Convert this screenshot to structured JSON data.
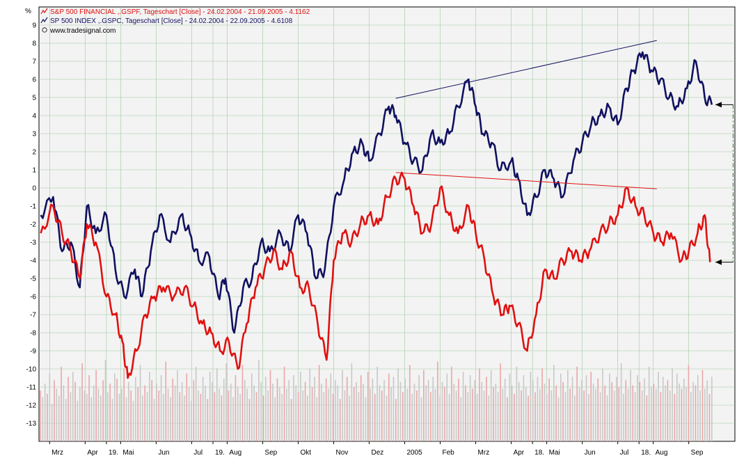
{
  "chart_data": {
    "type": "line",
    "y_unit": "%",
    "legend": [
      {
        "text": "S&P 500 FINANCIAL ,.GSPF, Tageschart [Close] - 24.02.2004 - 21.09.2005 - 4.1162",
        "color": "#e01010",
        "icon": "line-chart-icon"
      },
      {
        "text": "SP 500 INDEX ,.GSPC, Tageschart [Close] - 24.02.2004 - 22.09.2005 - 4.6108",
        "color": "#101060",
        "icon": "line-chart-icon"
      },
      {
        "text": "www.tradesignal.com",
        "color": "#000000",
        "icon": "copyright-icon"
      }
    ],
    "ylim": [
      -14,
      10
    ],
    "yticks": [
      9,
      8,
      7,
      6,
      5,
      4,
      3,
      2,
      1,
      0,
      -1,
      -2,
      -3,
      -4,
      -5,
      -6,
      -7,
      -8,
      -9,
      -10,
      -11,
      -12,
      -13
    ],
    "xticks": [
      {
        "label": "Mrz",
        "t": 0.0
      },
      {
        "label": "Apr",
        "t": 1.0
      },
      {
        "label": "19.",
        "t": 1.6
      },
      {
        "label": "Mai",
        "t": 2.0
      },
      {
        "label": "Jun",
        "t": 3.0
      },
      {
        "label": "Jul",
        "t": 4.0
      },
      {
        "label": "19.",
        "t": 4.6
      },
      {
        "label": "Aug",
        "t": 5.0
      },
      {
        "label": "Sep",
        "t": 6.0
      },
      {
        "label": "Okt",
        "t": 7.0
      },
      {
        "label": "Nov",
        "t": 8.0
      },
      {
        "label": "Dez",
        "t": 9.0
      },
      {
        "label": "2005",
        "t": 10.0
      },
      {
        "label": "Feb",
        "t": 11.0
      },
      {
        "label": "Mrz",
        "t": 12.0
      },
      {
        "label": "Apr",
        "t": 13.0
      },
      {
        "label": "18.",
        "t": 13.6
      },
      {
        "label": "Mai",
        "t": 14.0
      },
      {
        "label": "Jun",
        "t": 15.0
      },
      {
        "label": "Jul",
        "t": 16.0
      },
      {
        "label": "18.",
        "t": 16.6
      },
      {
        "label": "Aug",
        "t": 17.0
      },
      {
        "label": "Sep",
        "t": 18.0
      }
    ],
    "x_range": [
      -0.3,
      19.3
    ],
    "series": [
      {
        "color": "#101060",
        "points": [
          [
            -0.25,
            -1.5
          ],
          [
            0.1,
            -0.5
          ],
          [
            0.35,
            -3.5
          ],
          [
            0.6,
            -3.0
          ],
          [
            0.85,
            -5.5
          ],
          [
            1.05,
            -1.0
          ],
          [
            1.3,
            -2.5
          ],
          [
            1.6,
            -1.5
          ],
          [
            1.85,
            -4.5
          ],
          [
            2.1,
            -6.0
          ],
          [
            2.4,
            -4.5
          ],
          [
            2.6,
            -6.0
          ],
          [
            2.85,
            -3.5
          ],
          [
            3.1,
            -1.5
          ],
          [
            3.4,
            -3.0
          ],
          [
            3.7,
            -1.5
          ],
          [
            3.95,
            -2.5
          ],
          [
            4.2,
            -4.0
          ],
          [
            4.5,
            -3.8
          ],
          [
            4.75,
            -6.0
          ],
          [
            4.95,
            -5.0
          ],
          [
            5.2,
            -8.0
          ],
          [
            5.45,
            -5.5
          ],
          [
            5.7,
            -5.0
          ],
          [
            5.95,
            -3.0
          ],
          [
            6.2,
            -3.5
          ],
          [
            6.5,
            -2.5
          ],
          [
            6.75,
            -3.5
          ],
          [
            7.0,
            -1.5
          ],
          [
            7.25,
            -2.5
          ],
          [
            7.5,
            -5.0
          ],
          [
            7.75,
            -4.5
          ],
          [
            8.0,
            -1.0
          ],
          [
            8.3,
            0.5
          ],
          [
            8.55,
            2.0
          ],
          [
            8.8,
            2.5
          ],
          [
            9.0,
            1.5
          ],
          [
            9.3,
            3.0
          ],
          [
            9.55,
            4.5
          ],
          [
            9.75,
            4.0
          ],
          [
            10.0,
            2.5
          ],
          [
            10.25,
            1.5
          ],
          [
            10.5,
            1.0
          ],
          [
            10.75,
            3.0
          ],
          [
            11.0,
            2.5
          ],
          [
            11.25,
            3.0
          ],
          [
            11.5,
            4.5
          ],
          [
            11.8,
            6.0
          ],
          [
            12.0,
            4.5
          ],
          [
            12.2,
            3.0
          ],
          [
            12.45,
            2.5
          ],
          [
            12.7,
            1.0
          ],
          [
            13.0,
            1.5
          ],
          [
            13.2,
            0.5
          ],
          [
            13.45,
            -1.5
          ],
          [
            13.7,
            -0.5
          ],
          [
            13.95,
            1.0
          ],
          [
            14.2,
            0.5
          ],
          [
            14.45,
            -0.5
          ],
          [
            14.75,
            1.5
          ],
          [
            15.0,
            2.5
          ],
          [
            15.25,
            3.5
          ],
          [
            15.5,
            4.0
          ],
          [
            15.75,
            4.5
          ],
          [
            16.0,
            3.5
          ],
          [
            16.25,
            5.5
          ],
          [
            16.45,
            6.5
          ],
          [
            16.7,
            7.5
          ],
          [
            16.95,
            6.5
          ],
          [
            17.2,
            6.0
          ],
          [
            17.45,
            5.0
          ],
          [
            17.7,
            4.5
          ],
          [
            17.95,
            5.5
          ],
          [
            18.2,
            7.0
          ],
          [
            18.45,
            5.0
          ],
          [
            18.65,
            4.6
          ]
        ]
      },
      {
        "color": "#e01010",
        "points": [
          [
            -0.25,
            -2.5
          ],
          [
            0.1,
            -1.0
          ],
          [
            0.35,
            -2.5
          ],
          [
            0.6,
            -3.5
          ],
          [
            0.85,
            -5.0
          ],
          [
            1.05,
            -2.0
          ],
          [
            1.3,
            -3.0
          ],
          [
            1.6,
            -6.0
          ],
          [
            1.85,
            -7.0
          ],
          [
            2.05,
            -8.5
          ],
          [
            2.2,
            -10.5
          ],
          [
            2.45,
            -9.0
          ],
          [
            2.7,
            -7.0
          ],
          [
            2.95,
            -6.0
          ],
          [
            3.2,
            -5.5
          ],
          [
            3.5,
            -6.0
          ],
          [
            3.8,
            -5.5
          ],
          [
            4.05,
            -6.5
          ],
          [
            4.3,
            -7.5
          ],
          [
            4.55,
            -8.0
          ],
          [
            4.8,
            -9.0
          ],
          [
            5.05,
            -8.5
          ],
          [
            5.3,
            -10.0
          ],
          [
            5.55,
            -7.5
          ],
          [
            5.8,
            -5.5
          ],
          [
            6.05,
            -4.5
          ],
          [
            6.3,
            -3.5
          ],
          [
            6.55,
            -4.5
          ],
          [
            6.8,
            -3.5
          ],
          [
            7.05,
            -5.5
          ],
          [
            7.3,
            -5.5
          ],
          [
            7.55,
            -7.5
          ],
          [
            7.8,
            -9.5
          ],
          [
            8.0,
            -4.0
          ],
          [
            8.25,
            -2.5
          ],
          [
            8.5,
            -3.0
          ],
          [
            8.75,
            -2.0
          ],
          [
            9.0,
            -1.5
          ],
          [
            9.25,
            -2.0
          ],
          [
            9.5,
            -0.5
          ],
          [
            9.75,
            0.5
          ],
          [
            10.0,
            0.5
          ],
          [
            10.25,
            -1.0
          ],
          [
            10.5,
            -2.5
          ],
          [
            10.75,
            -2.0
          ],
          [
            11.0,
            0.0
          ],
          [
            11.25,
            -1.5
          ],
          [
            11.5,
            -2.5
          ],
          [
            11.8,
            -1.0
          ],
          [
            12.0,
            -2.5
          ],
          [
            12.25,
            -4.0
          ],
          [
            12.5,
            -6.0
          ],
          [
            12.75,
            -7.0
          ],
          [
            12.95,
            -6.5
          ],
          [
            13.2,
            -7.5
          ],
          [
            13.45,
            -9.0
          ],
          [
            13.7,
            -7.0
          ],
          [
            13.95,
            -4.5
          ],
          [
            14.2,
            -5.0
          ],
          [
            14.45,
            -4.0
          ],
          [
            14.7,
            -3.5
          ],
          [
            14.95,
            -4.0
          ],
          [
            15.2,
            -3.5
          ],
          [
            15.5,
            -2.5
          ],
          [
            15.75,
            -2.0
          ],
          [
            16.0,
            -1.5
          ],
          [
            16.25,
            0.0
          ],
          [
            16.5,
            -1.0
          ],
          [
            16.75,
            -1.5
          ],
          [
            17.0,
            -2.5
          ],
          [
            17.25,
            -3.0
          ],
          [
            17.5,
            -2.5
          ],
          [
            17.8,
            -4.0
          ],
          [
            18.0,
            -3.5
          ],
          [
            18.25,
            -2.5
          ],
          [
            18.45,
            -1.5
          ],
          [
            18.6,
            -4.1
          ]
        ]
      }
    ],
    "trendlines": [
      {
        "color": "#101060",
        "from": [
          9.75,
          4.95
        ],
        "to": [
          17.1,
          8.15
        ]
      },
      {
        "color": "#e01010",
        "from": [
          9.75,
          0.85
        ],
        "to": [
          17.1,
          -0.05
        ]
      }
    ],
    "gap_marker": {
      "color": "#207a20",
      "x": 19.25,
      "from": 4.6,
      "to": -4.1
    },
    "volume": [
      30,
      26,
      34,
      28,
      40,
      22,
      36,
      31,
      27,
      44,
      33,
      25,
      38,
      29,
      41,
      35,
      24,
      32,
      46,
      30,
      28,
      39,
      26,
      33,
      42,
      31,
      27,
      36,
      48,
      29,
      34,
      25,
      40,
      37,
      28,
      31,
      43,
      26,
      35,
      30,
      24,
      38,
      32,
      45,
      27,
      33,
      29,
      41,
      36,
      25,
      34,
      30,
      39,
      28,
      47,
      31,
      26,
      37,
      33,
      42,
      29,
      35,
      27,
      40,
      32,
      24,
      36,
      44,
      30,
      28,
      38,
      33,
      25,
      41,
      35,
      29,
      43,
      31,
      27,
      37,
      46,
      30,
      34,
      26,
      39,
      32,
      28,
      45,
      36,
      31,
      25,
      40,
      33,
      29,
      48,
      35,
      27,
      38,
      30,
      42,
      34,
      26,
      37,
      32,
      28,
      44,
      31,
      36,
      25,
      39,
      33,
      29,
      41,
      30,
      35,
      27,
      43,
      32,
      38,
      26,
      45,
      34,
      29,
      37,
      31,
      40,
      28,
      36,
      33,
      25,
      42,
      30,
      38,
      27,
      46,
      32,
      35,
      29,
      39,
      34,
      26,
      41,
      31,
      37,
      28,
      44,
      33,
      30,
      36,
      27,
      40,
      32,
      38,
      25,
      43,
      35,
      29,
      37,
      31,
      45,
      28,
      34,
      30,
      39,
      26,
      42,
      33,
      36,
      29,
      38,
      31,
      47,
      27,
      35,
      32,
      40,
      28,
      44,
      34,
      30,
      37,
      26,
      41,
      33,
      29,
      39,
      31,
      36,
      28,
      43,
      35,
      30,
      38,
      27,
      42,
      32,
      34,
      29,
      46,
      31,
      37,
      26,
      40,
      33,
      28,
      44,
      35,
      30,
      39,
      32,
      27,
      41,
      36,
      29,
      38,
      31,
      43,
      34,
      28,
      37,
      30,
      45,
      33,
      26,
      40,
      35,
      29,
      42,
      31,
      38,
      27,
      44,
      32,
      36,
      30,
      39,
      28,
      41,
      34,
      31,
      37,
      29,
      43,
      33,
      27,
      40,
      35,
      30,
      38,
      32,
      46,
      28,
      36,
      31,
      42,
      33,
      29,
      39,
      35,
      30,
      37,
      27,
      44,
      32,
      34,
      31,
      41,
      29,
      38,
      33,
      36,
      30,
      43,
      28,
      40,
      34,
      31,
      37,
      32,
      45,
      29,
      35,
      33,
      39,
      30,
      42,
      31,
      36,
      28,
      38
    ],
    "volume_max": 48
  }
}
